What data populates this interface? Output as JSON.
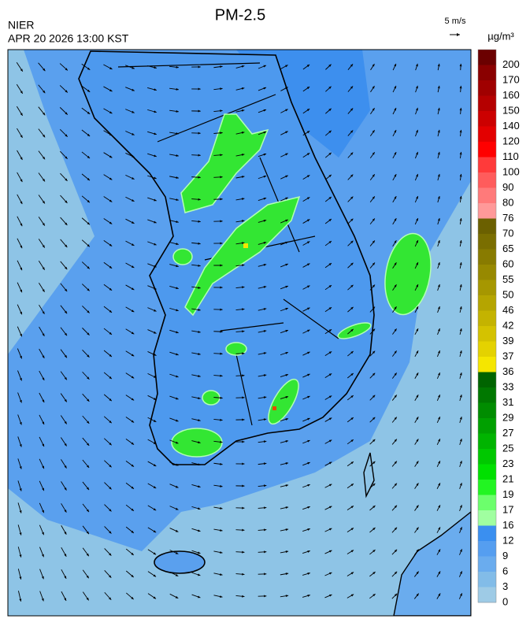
{
  "header": {
    "title": "PM-2.5",
    "agency": "NIER",
    "datetime": "APR 20 2026 13:00 KST"
  },
  "wind_scale": "5 m/s",
  "legend": {
    "unit": "µg/m³",
    "levels": [
      {
        "label": "200",
        "color": "#6b0000"
      },
      {
        "label": "170",
        "color": "#8a0000"
      },
      {
        "label": "160",
        "color": "#a00000"
      },
      {
        "label": "150",
        "color": "#b50000"
      },
      {
        "label": "140",
        "color": "#cc0000"
      },
      {
        "label": "120",
        "color": "#e30000"
      },
      {
        "label": "110",
        "color": "#ff0000"
      },
      {
        "label": "100",
        "color": "#ff3a3a"
      },
      {
        "label": "90",
        "color": "#ff5c5c"
      },
      {
        "label": "80",
        "color": "#ff7a7a"
      },
      {
        "label": "76",
        "color": "#ff9999"
      },
      {
        "label": "70",
        "color": "#6b6000"
      },
      {
        "label": "65",
        "color": "#7a6e00"
      },
      {
        "label": "60",
        "color": "#887b00"
      },
      {
        "label": "55",
        "color": "#978900"
      },
      {
        "label": "50",
        "color": "#a69700"
      },
      {
        "label": "46",
        "color": "#b5a500"
      },
      {
        "label": "42",
        "color": "#c4b300"
      },
      {
        "label": "39",
        "color": "#d4c200"
      },
      {
        "label": "37",
        "color": "#e4d200"
      },
      {
        "label": "36",
        "color": "#f5e600"
      },
      {
        "label": "33",
        "color": "#006400"
      },
      {
        "label": "31",
        "color": "#007800"
      },
      {
        "label": "29",
        "color": "#008c00"
      },
      {
        "label": "27",
        "color": "#00a000"
      },
      {
        "label": "25",
        "color": "#00b400"
      },
      {
        "label": "23",
        "color": "#00c800"
      },
      {
        "label": "21",
        "color": "#00e000"
      },
      {
        "label": "19",
        "color": "#22f522"
      },
      {
        "label": "17",
        "color": "#6cff6c"
      },
      {
        "label": "16",
        "color": "#a0ffa0"
      },
      {
        "label": "12",
        "color": "#3a8ff0"
      },
      {
        "label": "9",
        "color": "#559ef0"
      },
      {
        "label": "6",
        "color": "#6aacee"
      },
      {
        "label": "3",
        "color": "#82bce8"
      },
      {
        "label": "0",
        "color": "#9ecbe6"
      }
    ]
  }
}
